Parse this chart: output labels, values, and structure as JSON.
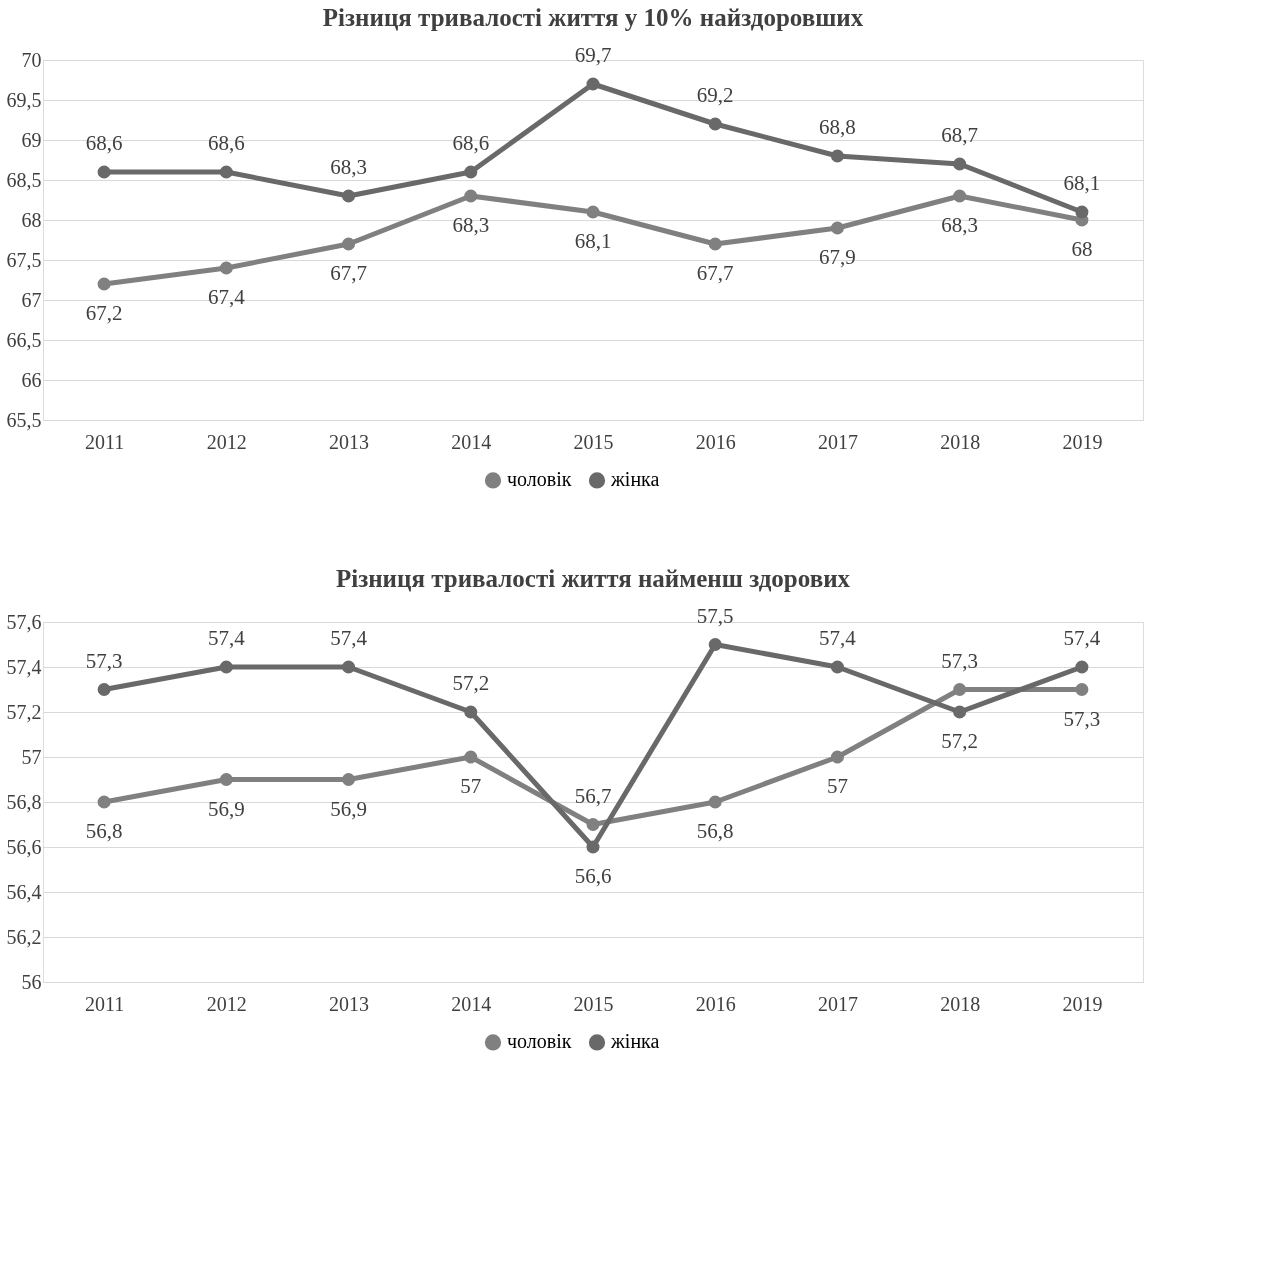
{
  "chart_data": [
    {
      "type": "line",
      "title": "Різниця тривалості життя у 10% найздоровших",
      "categories": [
        "2011",
        "2012",
        "2013",
        "2014",
        "2015",
        "2016",
        "2017",
        "2018",
        "2019"
      ],
      "series": [
        {
          "name": "чоловік",
          "color": "#808080",
          "values": [
            67.2,
            67.4,
            67.7,
            68.3,
            68.1,
            67.7,
            67.9,
            68.3,
            68
          ],
          "value_labels": [
            "67,2",
            "67,4",
            "67,7",
            "68,3",
            "68,1",
            "67,7",
            "67,9",
            "68,3",
            "68"
          ]
        },
        {
          "name": "жінка",
          "color": "#696969",
          "values": [
            68.6,
            68.6,
            68.3,
            68.6,
            69.7,
            69.2,
            68.8,
            68.7,
            68.1
          ],
          "value_labels": [
            "68,6",
            "68,6",
            "68,3",
            "68,6",
            "69,7",
            "69,2",
            "68,8",
            "68,7",
            "68,1"
          ]
        }
      ],
      "ylim": [
        65.5,
        70
      ],
      "yticks": [
        {
          "value": 65.5,
          "label": "65,5"
        },
        66,
        {
          "value": 66.5,
          "label": "66,5"
        },
        67,
        {
          "value": 67.5,
          "label": "67,5"
        },
        68,
        {
          "value": 68.5,
          "label": "68,5"
        },
        69,
        {
          "value": 69.5,
          "label": "69,5"
        },
        70
      ],
      "grid": "y",
      "legend": "bottom",
      "marker": "circle",
      "line_style": "solid"
    },
    {
      "type": "line",
      "title": "Різниця тривалості життя найменш здорових",
      "categories": [
        "2011",
        "2012",
        "2013",
        "2014",
        "2015",
        "2016",
        "2017",
        "2018",
        "2019"
      ],
      "series": [
        {
          "name": "чоловік",
          "color": "#808080",
          "values": [
            56.8,
            56.9,
            56.9,
            57,
            56.7,
            56.8,
            57,
            57.3,
            57.3
          ],
          "value_labels": [
            "56,8",
            "56,9",
            "56,9",
            "57",
            "56,7",
            "56,8",
            "57",
            "57,3",
            "57,3"
          ]
        },
        {
          "name": "жінка",
          "color": "#696969",
          "values": [
            57.3,
            57.4,
            57.4,
            57.2,
            56.6,
            57.5,
            57.4,
            57.2,
            57.4
          ],
          "value_labels": [
            "57,3",
            "57,4",
            "57,4",
            "57,2",
            "56,6",
            "57,5",
            "57,4",
            "57,2",
            "57,4"
          ]
        }
      ],
      "ylim": [
        56,
        57.6
      ],
      "yticks": [
        56,
        {
          "value": 56.2,
          "label": "56,2"
        },
        {
          "value": 56.4,
          "label": "56,4"
        },
        {
          "value": 56.6,
          "label": "56,6"
        },
        {
          "value": 56.8,
          "label": "56,8"
        },
        57,
        {
          "value": 57.2,
          "label": "57,2"
        },
        {
          "value": 57.4,
          "label": "57,4"
        },
        {
          "value": 57.6,
          "label": "57,6"
        }
      ],
      "grid": "y",
      "legend": "bottom",
      "marker": "circle",
      "line_style": "solid"
    }
  ]
}
